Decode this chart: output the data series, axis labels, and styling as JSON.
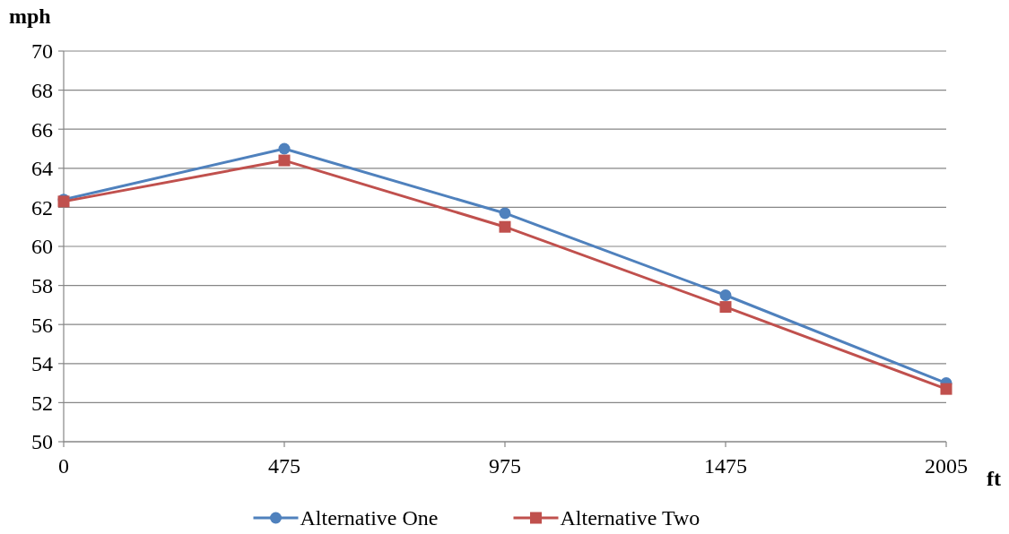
{
  "chart_data": {
    "type": "line",
    "xlabel": "ft",
    "ylabel": "mph",
    "categories": [
      "0",
      "475",
      "975",
      "1475",
      "2005"
    ],
    "series": [
      {
        "name": "Alternative One",
        "color": "#4f81bd",
        "marker": "circle",
        "values": [
          62.4,
          65.0,
          61.7,
          57.5,
          53.0
        ]
      },
      {
        "name": "Alternative Two",
        "color": "#c0504d",
        "marker": "square",
        "values": [
          62.3,
          64.4,
          61.0,
          56.9,
          52.7
        ]
      }
    ],
    "ylim": [
      50,
      70
    ],
    "yticks": [
      50,
      52,
      54,
      56,
      58,
      60,
      62,
      64,
      66,
      68,
      70
    ],
    "grid": "y",
    "legend": "bottom",
    "line_style": "solid"
  }
}
